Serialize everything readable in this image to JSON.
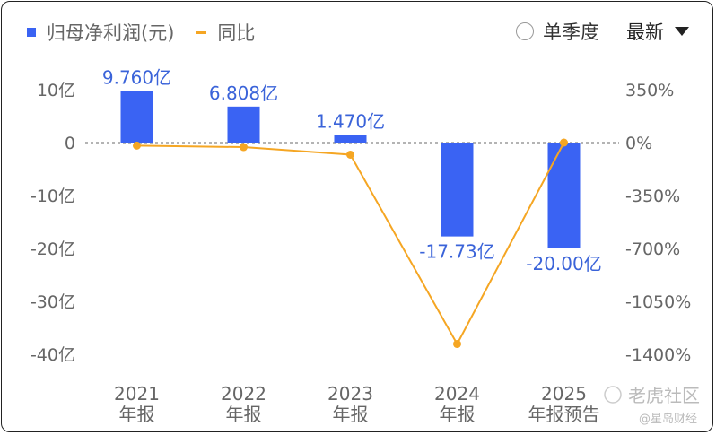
{
  "legend": {
    "bar_label": "归母净利润(元)",
    "line_label": "同比"
  },
  "controls": {
    "quarter_toggle_label": "单季度",
    "dropdown_value": "最新"
  },
  "watermarks": {
    "main": "老虎社区",
    "sub": "@星岛财经"
  },
  "colors": {
    "bar": "#3a63f3",
    "line": "#f5a623",
    "label": "#3a63d9"
  },
  "chart_data": {
    "type": "bar",
    "categories": [
      [
        "2021",
        "年报"
      ],
      [
        "2022",
        "年报"
      ],
      [
        "2023",
        "年报"
      ],
      [
        "2024",
        "年报"
      ],
      [
        "2025",
        "年报预告"
      ]
    ],
    "series": [
      {
        "name": "归母净利润(元)",
        "type": "bar",
        "axis": "left",
        "values": [
          9.76,
          6.808,
          1.47,
          -17.73,
          -20.0
        ],
        "labels": [
          "9.760亿",
          "6.808亿",
          "1.470亿",
          "-17.73亿",
          "-20.00亿"
        ]
      },
      {
        "name": "同比",
        "type": "line",
        "axis": "right",
        "values": [
          -20,
          -30,
          -80,
          -1332,
          0
        ]
      }
    ],
    "y_left": {
      "ticks": [
        10,
        0,
        -10,
        -20,
        -30,
        -40
      ],
      "tick_labels": [
        "10亿",
        "0",
        "-10亿",
        "-20亿",
        "-30亿",
        "-40亿"
      ],
      "range": [
        -40,
        10
      ]
    },
    "y_right": {
      "ticks": [
        350,
        0,
        -350,
        -700,
        -1050,
        -1400
      ],
      "tick_labels": [
        "350%",
        "0%",
        "-350%",
        "-700%",
        "-1050%",
        "-1400%"
      ],
      "range": [
        -1400,
        350
      ]
    },
    "zero_line": "dashed"
  }
}
